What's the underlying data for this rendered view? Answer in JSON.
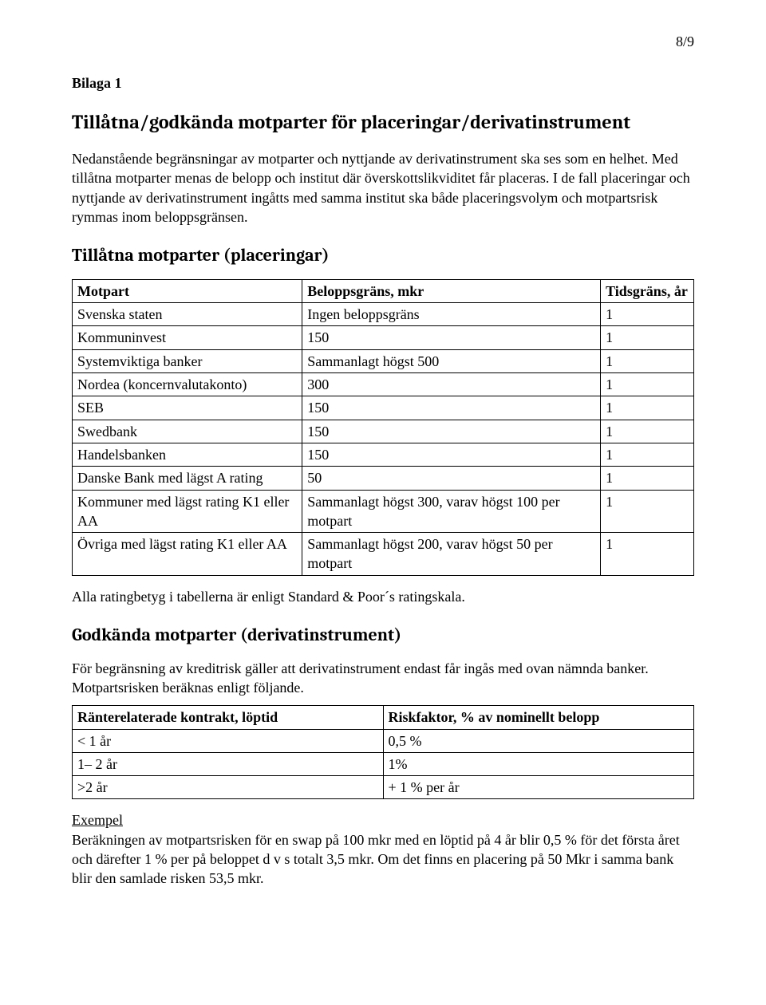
{
  "page_number": "8/9",
  "bilaga_label": "Bilaga 1",
  "main_heading": "Tillåtna/godkända motparter för placeringar/derivatinstrument",
  "intro_paragraph": "Nedanstående begränsningar av motparter och nyttjande av derivatinstrument ska ses som en helhet. Med tillåtna motparter menas de belopp och institut där överskottslikviditet får placeras. I de fall placeringar och nyttjande av derivatinstrument ingåtts med samma institut ska både placeringsvolym och motpartsrisk rymmas inom beloppsgränsen.",
  "section1_heading": "Tillåtna motparter (placeringar)",
  "table1": {
    "headers": {
      "motpart": "Motpart",
      "belopp": "Beloppsgräns, mkr",
      "tid": "Tidsgräns, år"
    },
    "rows": [
      {
        "motpart": "Svenska staten",
        "belopp": "Ingen beloppsgräns",
        "tid": "1"
      },
      {
        "motpart": "Kommuninvest",
        "belopp": "150",
        "tid": "1"
      },
      {
        "motpart": "Systemviktiga banker",
        "belopp": "Sammanlagt högst 500",
        "tid": "1"
      },
      {
        "motpart": "Nordea (koncernvalutakonto)",
        "belopp": "300",
        "tid": "1"
      },
      {
        "motpart": "SEB",
        "belopp": "150",
        "tid": "1"
      },
      {
        "motpart": "Swedbank",
        "belopp": "150",
        "tid": "1"
      },
      {
        "motpart": "Handelsbanken",
        "belopp": "150",
        "tid": "1"
      },
      {
        "motpart": "Danske Bank med lägst A rating",
        "belopp": "50",
        "tid": "1"
      },
      {
        "motpart": "Kommuner med lägst rating K1 eller AA",
        "belopp": "Sammanlagt högst 300, varav högst 100 per motpart",
        "tid": "1"
      },
      {
        "motpart": "Övriga med lägst rating K1 eller AA",
        "belopp": "Sammanlagt högst 200, varav högst 50 per motpart",
        "tid": "1"
      }
    ]
  },
  "rating_note": "Alla ratingbetyg i tabellerna är enligt Standard & Poor´s ratingskala.",
  "section2_heading": "Godkända motparter (derivatinstrument)",
  "section2_body": "För begränsning av kreditrisk gäller att derivatinstrument endast får ingås med ovan nämnda banker. Motpartsrisken beräknas enligt följande.",
  "table2": {
    "headers": {
      "loptid": "Ränterelaterade kontrakt, löptid",
      "risk": "Riskfaktor, % av nominellt belopp"
    },
    "rows": [
      {
        "loptid": "< 1 år",
        "risk": "0,5 %"
      },
      {
        "loptid": "1– 2 år",
        "risk": "1%"
      },
      {
        "loptid": ">2 år",
        "risk": "+ 1 % per år"
      }
    ]
  },
  "example_label": "Exempel",
  "example_body": "Beräkningen av motpartsrisken för en swap på 100 mkr med en löptid på 4 år blir 0,5 % för det första året och därefter 1 % per på beloppet d v s totalt 3,5 mkr. Om det finns en placering på 50 Mkr i samma bank blir den samlade risken 53,5 mkr."
}
